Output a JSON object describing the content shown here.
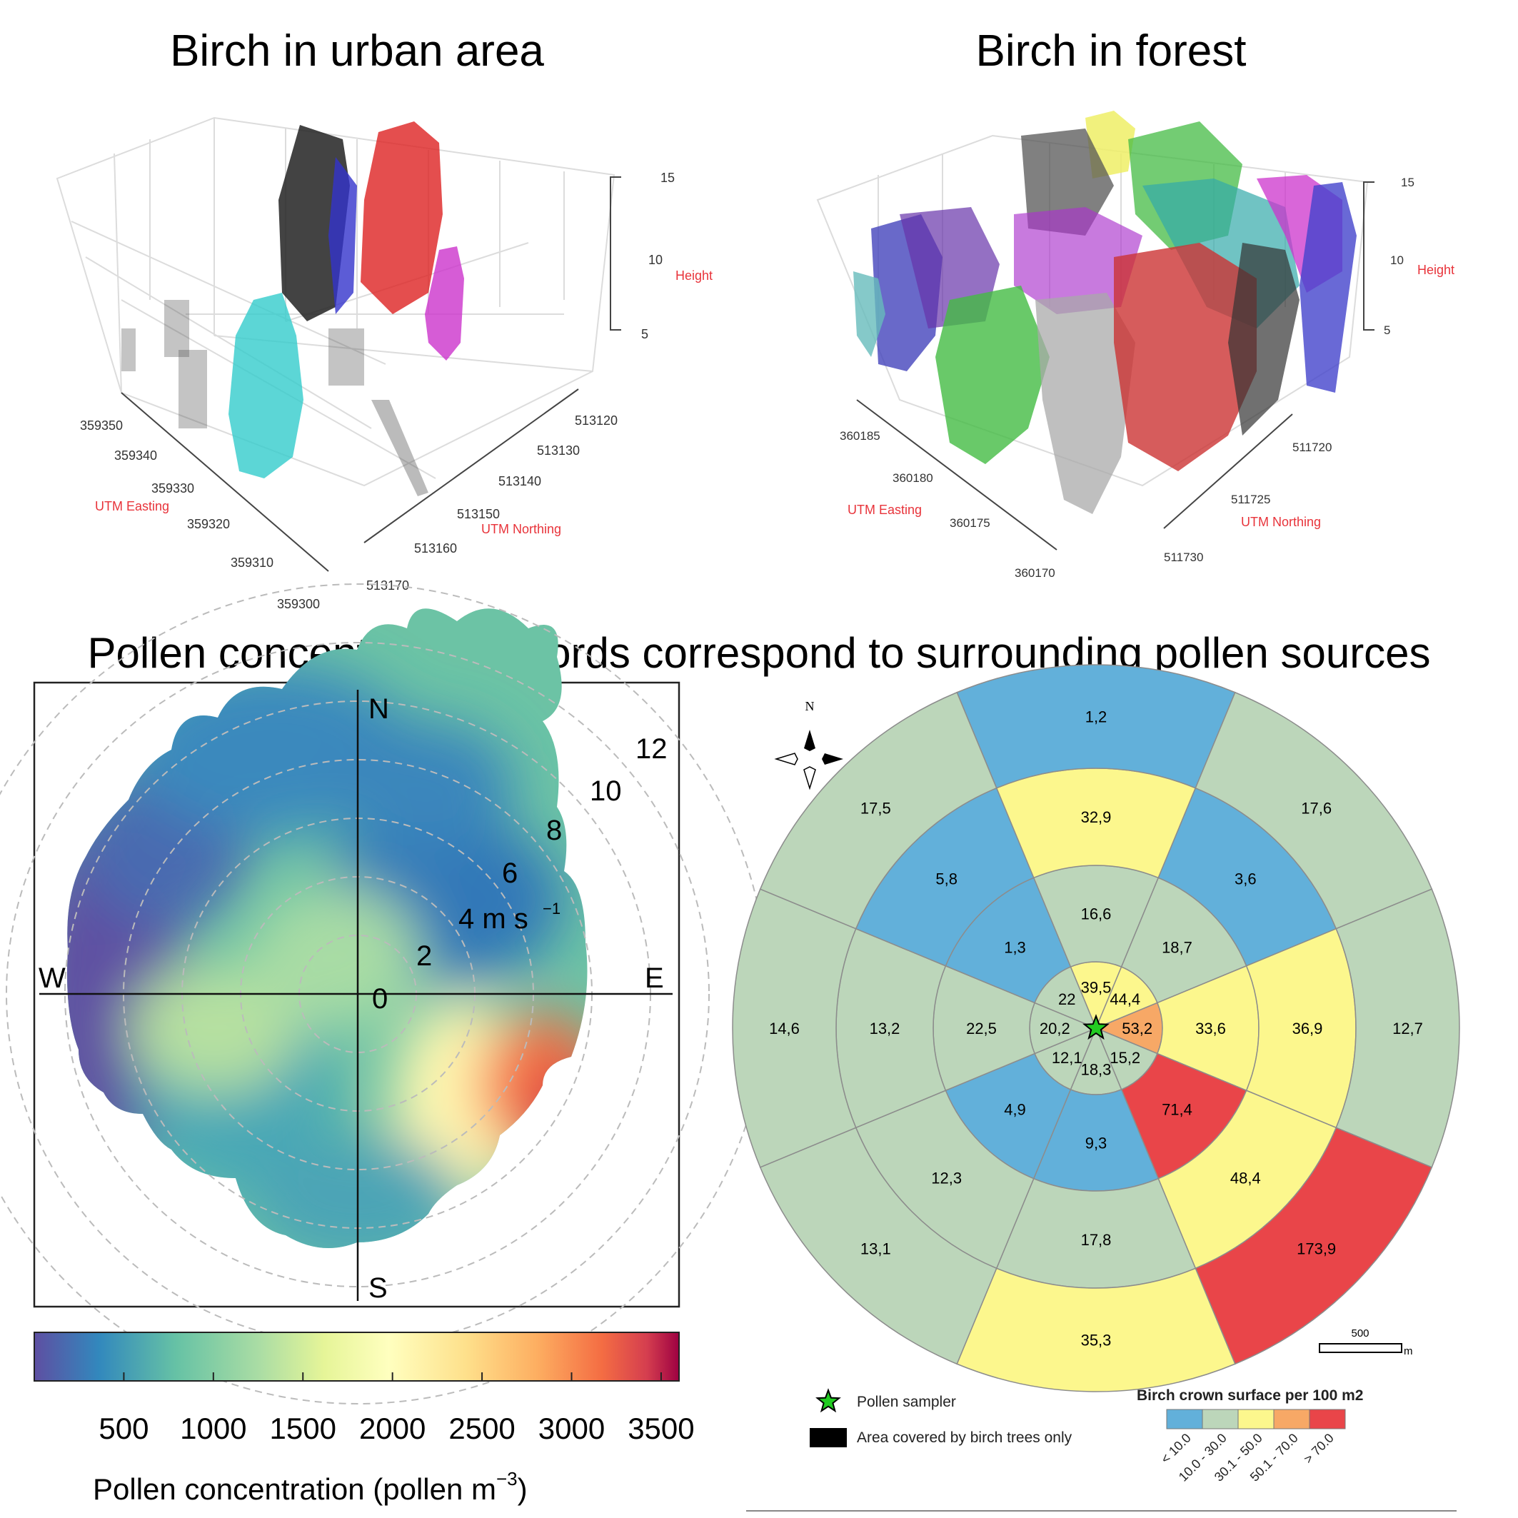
{
  "titles": {
    "urban": "Birch in urban area",
    "forest": "Birch in forest",
    "main": "Pollen concentration records correspond to surrounding pollen sources"
  },
  "chart_data": [
    {
      "type": "scatter",
      "panel": "urban",
      "title": "Birch in urban area",
      "x_axis": {
        "label": "UTM Easting",
        "ticks": [
          "359350",
          "359340",
          "359330",
          "359320",
          "359310",
          "359300"
        ]
      },
      "y_axis": {
        "label": "UTM Northing",
        "ticks": [
          "513120",
          "513130",
          "513140",
          "513150",
          "513160",
          "513170"
        ]
      },
      "z_axis": {
        "label": "Height",
        "ticks": [
          "15",
          "10",
          "5"
        ]
      },
      "grid": true
    },
    {
      "type": "scatter",
      "panel": "forest",
      "title": "Birch in forest",
      "x_axis": {
        "label": "UTM Easting",
        "ticks": [
          "360185",
          "360180",
          "360175",
          "360170"
        ]
      },
      "y_axis": {
        "label": "UTM Northing",
        "ticks": [
          "511720",
          "511725",
          "511730"
        ]
      },
      "z_axis": {
        "label": "Height",
        "ticks": [
          "15",
          "10",
          "5"
        ]
      },
      "grid": true
    },
    {
      "type": "heatmap",
      "panel": "polar-wind",
      "directions": {
        "n": "N",
        "s": "S",
        "e": "E",
        "w": "W"
      },
      "speed_rings": [
        "0",
        "2",
        "4 m s",
        "6",
        "8",
        "10",
        "12"
      ],
      "speed_unit_sup": "−1",
      "colorbar": {
        "ticks": [
          "500",
          "1000",
          "1500",
          "2000",
          "2500",
          "3000",
          "3500"
        ],
        "min": 0,
        "max": 3600,
        "label": "Pollen concentration (pollen m",
        "label_sup": "−3",
        "label_end": ")"
      }
    },
    {
      "type": "pie",
      "panel": "sector-map",
      "compass": "N",
      "scale": {
        "value": "500",
        "unit": "m"
      },
      "rings": [
        {
          "ring": 1,
          "values": [
            "39,5",
            "44,4",
            "53,2",
            "15,2",
            "18,3",
            "12,1",
            "20,2",
            "22"
          ]
        },
        {
          "ring": 2,
          "values": [
            "16,6",
            "18,7",
            "33,6",
            "71,4",
            "9,3",
            "4,9",
            "22,5",
            "1,3"
          ]
        },
        {
          "ring": 3,
          "values": [
            "32,9",
            "3,6",
            "36,9",
            "48,4",
            "17,8",
            "12,3",
            "13,2",
            "5,8"
          ]
        },
        {
          "ring": 4,
          "values": [
            "1,2",
            "17,6",
            "12,7",
            "173,9",
            "35,3",
            "13,1",
            "14,6",
            "17,5"
          ]
        }
      ],
      "legend": {
        "sampler": "Pollen sampler",
        "area": "Area covered by birch trees only",
        "title": "Birch crown surface per 100 m2",
        "classes": [
          {
            "label": "< 10.0",
            "color": "#62b0da"
          },
          {
            "label": "10.0 - 30.0",
            "color": "#bcd6ba"
          },
          {
            "label": "30.1 - 50.0",
            "color": "#fcf78d"
          },
          {
            "label": "50.1 - 70.0",
            "color": "#f7a866"
          },
          {
            "label": "> 70.0",
            "color": "#e94549"
          }
        ]
      }
    }
  ]
}
